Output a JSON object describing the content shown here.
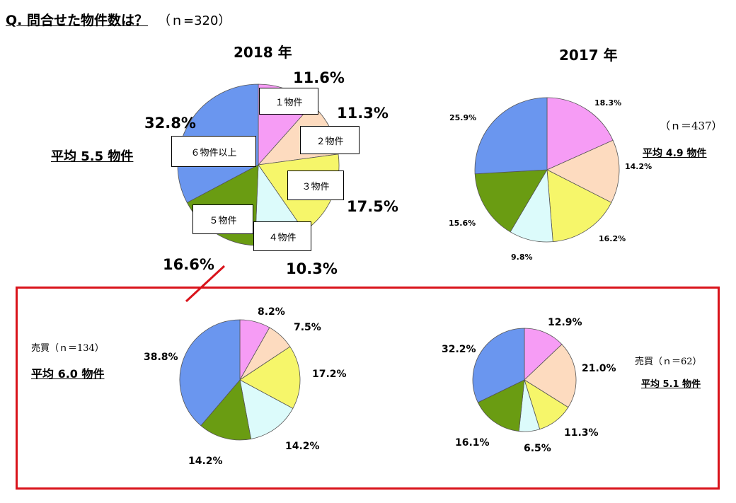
{
  "header": {
    "question": "Q. 問合せた物件数は？",
    "n": "（ｎ=320）"
  },
  "chart_data": [
    {
      "type": "pie",
      "id": "2018",
      "title": "2018 年",
      "average": "平均 5.5 物件",
      "categories": [
        "1物件",
        "2物件",
        "3物件",
        "4物件",
        "5物件",
        "6物件以上"
      ],
      "category_labels": [
        "１物件",
        "２物件",
        "３物件",
        "４物件",
        "５物件",
        "６物件以上"
      ],
      "values": [
        11.6,
        11.3,
        17.5,
        10.3,
        16.6,
        32.8
      ],
      "labels": [
        "11.6%",
        "11.3%",
        "17.5%",
        "10.3%",
        "16.6%",
        "32.8%"
      ]
    },
    {
      "type": "pie",
      "id": "2017",
      "title": "2017 年",
      "n": "（ｎ＝437）",
      "average": "平均 4.9 物件",
      "categories": [
        "1物件",
        "2物件",
        "3物件",
        "4物件",
        "5物件",
        "6物件以上"
      ],
      "values": [
        18.3,
        14.2,
        16.2,
        9.8,
        15.6,
        25.9
      ],
      "labels": [
        "18.3%",
        "14.2%",
        "16.2%",
        "9.8%",
        "15.6%",
        "25.9%"
      ]
    },
    {
      "type": "pie",
      "id": "sale-a",
      "title": "",
      "n": "売買（ｎ＝134）",
      "average": "平均 6.0 物件",
      "categories": [
        "1物件",
        "2物件",
        "3物件",
        "4物件",
        "5物件",
        "6物件以上"
      ],
      "values": [
        8.2,
        7.5,
        17.2,
        14.2,
        14.2,
        38.8
      ],
      "labels": [
        "8.2%",
        "7.5%",
        "17.2%",
        "14.2%",
        "14.2%",
        "38.8%"
      ]
    },
    {
      "type": "pie",
      "id": "sale-b",
      "title": "",
      "n": "売買（ｎ＝62）",
      "average": "平均 5.1 物件",
      "categories": [
        "1物件",
        "2物件",
        "3物件",
        "4物件",
        "5物件",
        "6物件以上"
      ],
      "values": [
        12.9,
        21.0,
        11.3,
        6.5,
        16.1,
        32.2
      ],
      "labels": [
        "12.9%",
        "21.0%",
        "11.3%",
        "6.5%",
        "16.1%",
        "32.2%"
      ]
    }
  ],
  "colors": [
    "#f69cf5",
    "#fddbbf",
    "#f6f66a",
    "#dcfbfb",
    "#6a9c12",
    "#6a96ef"
  ],
  "frame_color": "#d9131b"
}
